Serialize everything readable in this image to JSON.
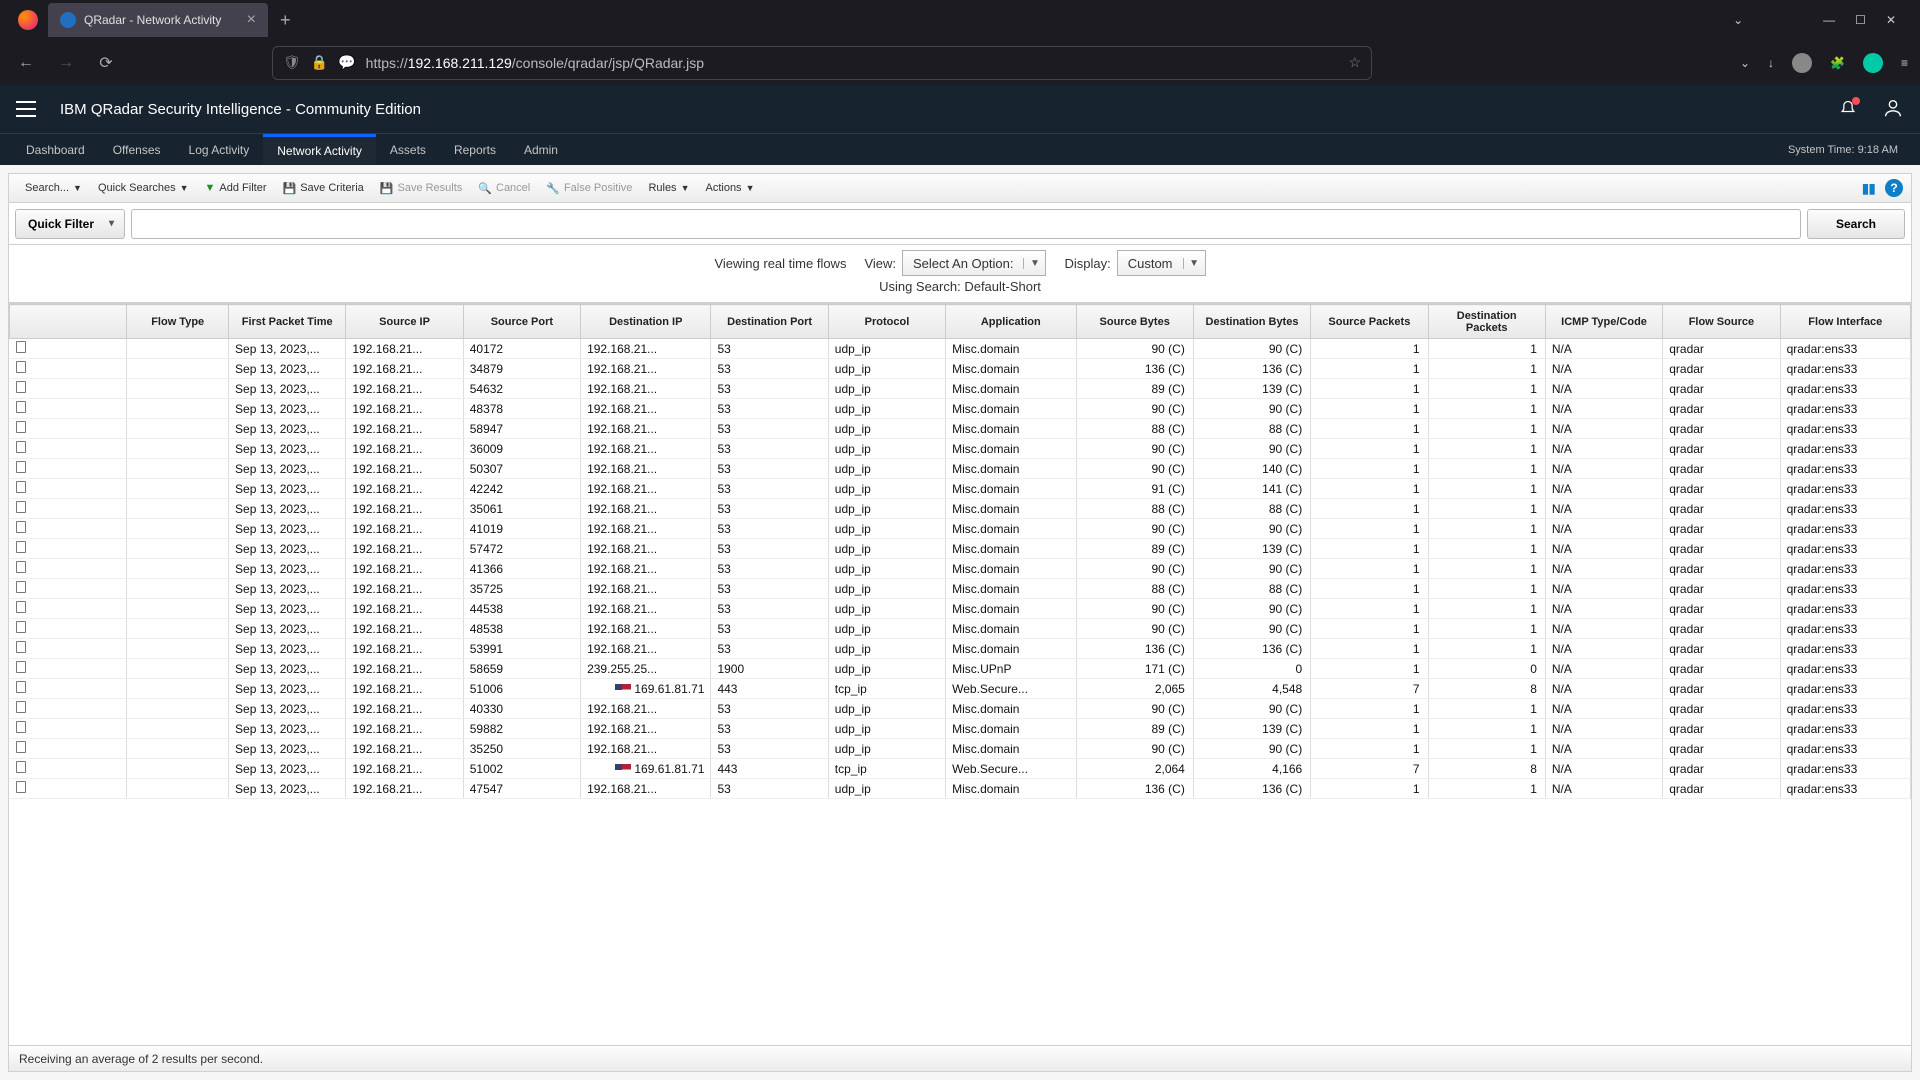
{
  "browser": {
    "tab_title": "QRadar - Network Activity",
    "url_prefix": "https://",
    "url_host": "192.168.211.129",
    "url_path": "/console/qradar/jsp/QRadar.jsp"
  },
  "app": {
    "product": "IBM QRadar Security Intelligence - Community Edition",
    "system_time_label": "System Time: 9:18 AM",
    "nav": [
      "Dashboard",
      "Offenses",
      "Log Activity",
      "Network Activity",
      "Assets",
      "Reports",
      "Admin"
    ],
    "active_nav_index": 3
  },
  "toolbar": {
    "search": "Search...",
    "quick_searches": "Quick Searches",
    "add_filter": "Add Filter",
    "save_criteria": "Save Criteria",
    "save_results": "Save Results",
    "cancel": "Cancel",
    "false_positive": "False Positive",
    "rules": "Rules",
    "actions": "Actions"
  },
  "filter": {
    "quick_filter": "Quick Filter",
    "search_btn": "Search"
  },
  "view_controls": {
    "viewing": "Viewing real time flows",
    "view_label": "View:",
    "view_value": "Select An Option:",
    "display_label": "Display:",
    "display_value": "Custom",
    "using_search": "Using Search: Default-Short"
  },
  "table": {
    "columns": [
      "",
      "Flow Type",
      "First Packet Time",
      "Source IP",
      "Source Port",
      "Destination IP",
      "Destination Port",
      "Protocol",
      "Application",
      "Source Bytes",
      "Destination Bytes",
      "Source Packets",
      "Destination Packets",
      "ICMP Type/Code",
      "Flow Source",
      "Flow Interface"
    ],
    "rows": [
      [
        "Sep 13, 2023,...",
        "192.168.21...",
        "40172",
        "192.168.21...",
        "53",
        "udp_ip",
        "Misc.domain",
        "90 (C)",
        "90 (C)",
        "1",
        "1",
        "N/A",
        "qradar",
        "qradar:ens33",
        false
      ],
      [
        "Sep 13, 2023,...",
        "192.168.21...",
        "34879",
        "192.168.21...",
        "53",
        "udp_ip",
        "Misc.domain",
        "136 (C)",
        "136 (C)",
        "1",
        "1",
        "N/A",
        "qradar",
        "qradar:ens33",
        false
      ],
      [
        "Sep 13, 2023,...",
        "192.168.21...",
        "54632",
        "192.168.21...",
        "53",
        "udp_ip",
        "Misc.domain",
        "89 (C)",
        "139 (C)",
        "1",
        "1",
        "N/A",
        "qradar",
        "qradar:ens33",
        false
      ],
      [
        "Sep 13, 2023,...",
        "192.168.21...",
        "48378",
        "192.168.21...",
        "53",
        "udp_ip",
        "Misc.domain",
        "90 (C)",
        "90 (C)",
        "1",
        "1",
        "N/A",
        "qradar",
        "qradar:ens33",
        false
      ],
      [
        "Sep 13, 2023,...",
        "192.168.21...",
        "58947",
        "192.168.21...",
        "53",
        "udp_ip",
        "Misc.domain",
        "88 (C)",
        "88 (C)",
        "1",
        "1",
        "N/A",
        "qradar",
        "qradar:ens33",
        false
      ],
      [
        "Sep 13, 2023,...",
        "192.168.21...",
        "36009",
        "192.168.21...",
        "53",
        "udp_ip",
        "Misc.domain",
        "90 (C)",
        "90 (C)",
        "1",
        "1",
        "N/A",
        "qradar",
        "qradar:ens33",
        false
      ],
      [
        "Sep 13, 2023,...",
        "192.168.21...",
        "50307",
        "192.168.21...",
        "53",
        "udp_ip",
        "Misc.domain",
        "90 (C)",
        "140 (C)",
        "1",
        "1",
        "N/A",
        "qradar",
        "qradar:ens33",
        false
      ],
      [
        "Sep 13, 2023,...",
        "192.168.21...",
        "42242",
        "192.168.21...",
        "53",
        "udp_ip",
        "Misc.domain",
        "91 (C)",
        "141 (C)",
        "1",
        "1",
        "N/A",
        "qradar",
        "qradar:ens33",
        false
      ],
      [
        "Sep 13, 2023,...",
        "192.168.21...",
        "35061",
        "192.168.21...",
        "53",
        "udp_ip",
        "Misc.domain",
        "88 (C)",
        "88 (C)",
        "1",
        "1",
        "N/A",
        "qradar",
        "qradar:ens33",
        false
      ],
      [
        "Sep 13, 2023,...",
        "192.168.21...",
        "41019",
        "192.168.21...",
        "53",
        "udp_ip",
        "Misc.domain",
        "90 (C)",
        "90 (C)",
        "1",
        "1",
        "N/A",
        "qradar",
        "qradar:ens33",
        false
      ],
      [
        "Sep 13, 2023,...",
        "192.168.21...",
        "57472",
        "192.168.21...",
        "53",
        "udp_ip",
        "Misc.domain",
        "89 (C)",
        "139 (C)",
        "1",
        "1",
        "N/A",
        "qradar",
        "qradar:ens33",
        false
      ],
      [
        "Sep 13, 2023,...",
        "192.168.21...",
        "41366",
        "192.168.21...",
        "53",
        "udp_ip",
        "Misc.domain",
        "90 (C)",
        "90 (C)",
        "1",
        "1",
        "N/A",
        "qradar",
        "qradar:ens33",
        false
      ],
      [
        "Sep 13, 2023,...",
        "192.168.21...",
        "35725",
        "192.168.21...",
        "53",
        "udp_ip",
        "Misc.domain",
        "88 (C)",
        "88 (C)",
        "1",
        "1",
        "N/A",
        "qradar",
        "qradar:ens33",
        false
      ],
      [
        "Sep 13, 2023,...",
        "192.168.21...",
        "44538",
        "192.168.21...",
        "53",
        "udp_ip",
        "Misc.domain",
        "90 (C)",
        "90 (C)",
        "1",
        "1",
        "N/A",
        "qradar",
        "qradar:ens33",
        false
      ],
      [
        "Sep 13, 2023,...",
        "192.168.21...",
        "48538",
        "192.168.21...",
        "53",
        "udp_ip",
        "Misc.domain",
        "90 (C)",
        "90 (C)",
        "1",
        "1",
        "N/A",
        "qradar",
        "qradar:ens33",
        false
      ],
      [
        "Sep 13, 2023,...",
        "192.168.21...",
        "53991",
        "192.168.21...",
        "53",
        "udp_ip",
        "Misc.domain",
        "136 (C)",
        "136 (C)",
        "1",
        "1",
        "N/A",
        "qradar",
        "qradar:ens33",
        false
      ],
      [
        "Sep 13, 2023,...",
        "192.168.21...",
        "58659",
        "239.255.25...",
        "1900",
        "udp_ip",
        "Misc.UPnP",
        "171 (C)",
        "0",
        "1",
        "0",
        "N/A",
        "qradar",
        "qradar:ens33",
        false
      ],
      [
        "Sep 13, 2023,...",
        "192.168.21...",
        "51006",
        "169.61.81.71",
        "443",
        "tcp_ip",
        "Web.Secure...",
        "2,065",
        "4,548",
        "7",
        "8",
        "N/A",
        "qradar",
        "qradar:ens33",
        true
      ],
      [
        "Sep 13, 2023,...",
        "192.168.21...",
        "40330",
        "192.168.21...",
        "53",
        "udp_ip",
        "Misc.domain",
        "90 (C)",
        "90 (C)",
        "1",
        "1",
        "N/A",
        "qradar",
        "qradar:ens33",
        false
      ],
      [
        "Sep 13, 2023,...",
        "192.168.21...",
        "59882",
        "192.168.21...",
        "53",
        "udp_ip",
        "Misc.domain",
        "89 (C)",
        "139 (C)",
        "1",
        "1",
        "N/A",
        "qradar",
        "qradar:ens33",
        false
      ],
      [
        "Sep 13, 2023,...",
        "192.168.21...",
        "35250",
        "192.168.21...",
        "53",
        "udp_ip",
        "Misc.domain",
        "90 (C)",
        "90 (C)",
        "1",
        "1",
        "N/A",
        "qradar",
        "qradar:ens33",
        false
      ],
      [
        "Sep 13, 2023,...",
        "192.168.21...",
        "51002",
        "169.61.81.71",
        "443",
        "tcp_ip",
        "Web.Secure...",
        "2,064",
        "4,166",
        "7",
        "8",
        "N/A",
        "qradar",
        "qradar:ens33",
        true
      ],
      [
        "Sep 13, 2023,...",
        "192.168.21...",
        "47547",
        "192.168.21...",
        "53",
        "udp_ip",
        "Misc.domain",
        "136 (C)",
        "136 (C)",
        "1",
        "1",
        "N/A",
        "qradar",
        "qradar:ens33",
        false
      ]
    ]
  },
  "status": "Receiving an average of 2 results per second."
}
